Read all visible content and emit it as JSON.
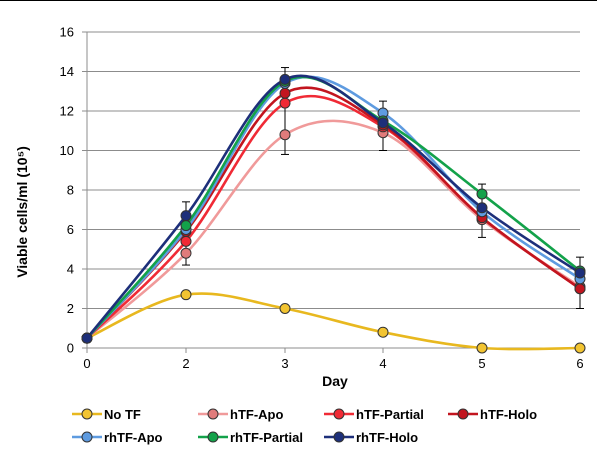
{
  "chart_data": {
    "type": "line",
    "xlabel": "Day",
    "ylabel": "Viable cells/ml (10⁵)",
    "x": [
      0,
      2,
      3,
      4,
      5,
      6
    ],
    "xlim": [
      0,
      6
    ],
    "ylim": [
      0,
      16
    ],
    "xticks": [
      "0",
      "2",
      "3",
      "4",
      "5",
      "6"
    ],
    "yticks": [
      "0",
      "2",
      "4",
      "6",
      "8",
      "10",
      "12",
      "14",
      "16"
    ],
    "grid": true,
    "legend": "bottom",
    "series": [
      {
        "name": "No TF",
        "color": "#f2c431",
        "line": "#e8b81f",
        "values": [
          0.5,
          2.7,
          2.0,
          0.8,
          0.0,
          0.0
        ]
      },
      {
        "name": "hTF-Apo",
        "color": "#e07b7b",
        "line": "#f09a9a",
        "values": [
          0.5,
          4.8,
          10.8,
          10.9,
          6.5,
          3.1
        ]
      },
      {
        "name": "hTF-Partial",
        "color": "#f02a35",
        "line": "#f02a35",
        "values": [
          0.5,
          5.4,
          12.4,
          11.2,
          6.6,
          3.0
        ]
      },
      {
        "name": "hTF-Holo",
        "color": "#c2151f",
        "line": "#c2151f",
        "values": [
          0.5,
          5.9,
          12.9,
          11.3,
          6.6,
          3.0
        ]
      },
      {
        "name": "rhTF-Apo",
        "color": "#5e9be0",
        "line": "#5e9be0",
        "values": [
          0.5,
          6.0,
          13.4,
          11.9,
          6.9,
          3.5
        ]
      },
      {
        "name": "rhTF-Partial",
        "color": "#13a24a",
        "line": "#13a24a",
        "values": [
          0.5,
          6.2,
          13.5,
          11.5,
          7.8,
          3.9
        ]
      },
      {
        "name": "rhTF-Holo",
        "color": "#1d2f7a",
        "line": "#1d2f7a",
        "values": [
          0.5,
          6.7,
          13.6,
          11.4,
          7.1,
          3.8
        ]
      }
    ]
  }
}
